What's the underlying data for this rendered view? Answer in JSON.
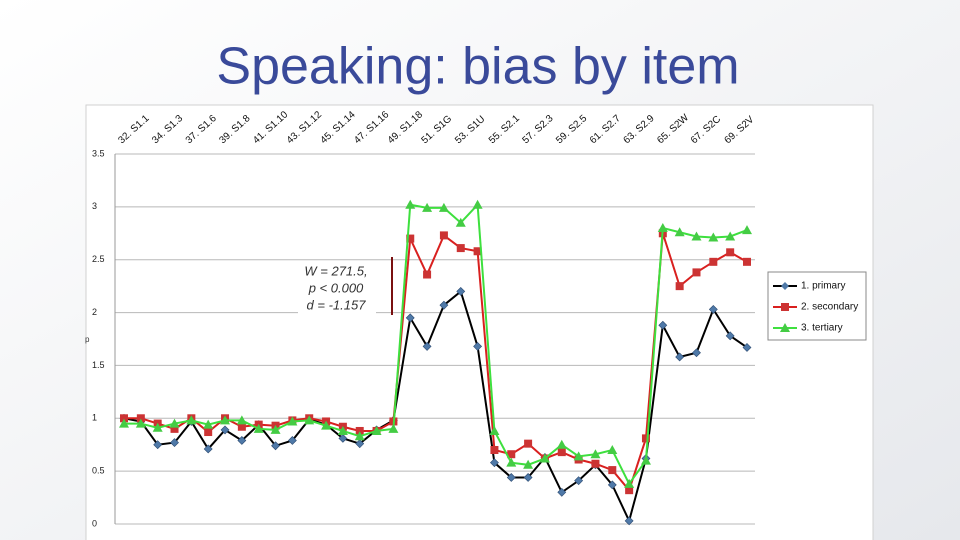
{
  "chart_data": {
    "type": "line",
    "title": "Speaking: bias by item",
    "y_label": "p",
    "annotation": [
      "W = 271.5,",
      "p < 0.000",
      "d = -1.157"
    ],
    "categories": [
      "32. S1.1",
      null,
      "34. S1.3",
      null,
      "37. S1.6",
      null,
      "39. S1.8",
      null,
      "41. S1.10",
      null,
      "43. S1.12",
      null,
      "45. S1.14",
      null,
      "47. S1.16",
      null,
      "49. S1.18",
      null,
      "51. S1G",
      null,
      "53. S1U",
      null,
      "55. S2.1",
      null,
      "57. S2.3",
      null,
      "59. S2.5",
      null,
      "61. S2.7",
      null,
      "63. S2.9",
      null,
      "65. S2W",
      null,
      "67. S2C",
      null,
      "69. S2V",
      null
    ],
    "series": [
      {
        "name": "1. primary",
        "color": "#000000",
        "marker_color": "#4f79a8",
        "marker": "diamond",
        "values": [
          1.0,
          0.97,
          0.75,
          0.77,
          0.97,
          0.71,
          0.89,
          0.79,
          0.94,
          0.74,
          0.79,
          0.99,
          0.94,
          0.81,
          0.76,
          0.89,
          0.98,
          1.95,
          1.68,
          2.07,
          2.2,
          1.68,
          0.58,
          0.44,
          0.44,
          0.63,
          0.3,
          0.41,
          0.56,
          0.37,
          0.03,
          0.62,
          1.88,
          1.58,
          1.62,
          2.03,
          1.78,
          1.67
        ]
      },
      {
        "name": "2. secondary",
        "color": "#d9201f",
        "marker_color": "#cc3333",
        "marker": "square",
        "values": [
          1.0,
          1.0,
          0.95,
          0.9,
          1.0,
          0.87,
          1.0,
          0.92,
          0.94,
          0.93,
          0.98,
          1.0,
          0.97,
          0.92,
          0.88,
          0.88,
          0.97,
          2.7,
          2.36,
          2.73,
          2.61,
          2.58,
          0.7,
          0.66,
          0.76,
          0.62,
          0.68,
          0.61,
          0.57,
          0.51,
          0.32,
          0.81,
          2.75,
          2.25,
          2.38,
          2.48,
          2.57,
          2.48
        ]
      },
      {
        "name": "3. tertiary",
        "color": "#3ee03e",
        "marker_color": "#44cc44",
        "marker": "triangle",
        "values": [
          0.95,
          0.95,
          0.91,
          0.95,
          0.98,
          0.94,
          0.98,
          0.98,
          0.9,
          0.89,
          0.97,
          0.98,
          0.93,
          0.88,
          0.83,
          0.88,
          0.9,
          3.02,
          2.99,
          2.99,
          2.85,
          3.02,
          0.88,
          0.58,
          0.56,
          0.62,
          0.75,
          0.64,
          0.66,
          0.7,
          0.38,
          0.6,
          2.8,
          2.76,
          2.72,
          2.71,
          2.72,
          2.78
        ]
      }
    ],
    "ylim": [
      0,
      3.5
    ],
    "yticks": [
      0,
      0.5,
      1,
      1.5,
      2,
      2.5,
      3,
      3.5
    ],
    "grid": true,
    "legend": "right"
  }
}
